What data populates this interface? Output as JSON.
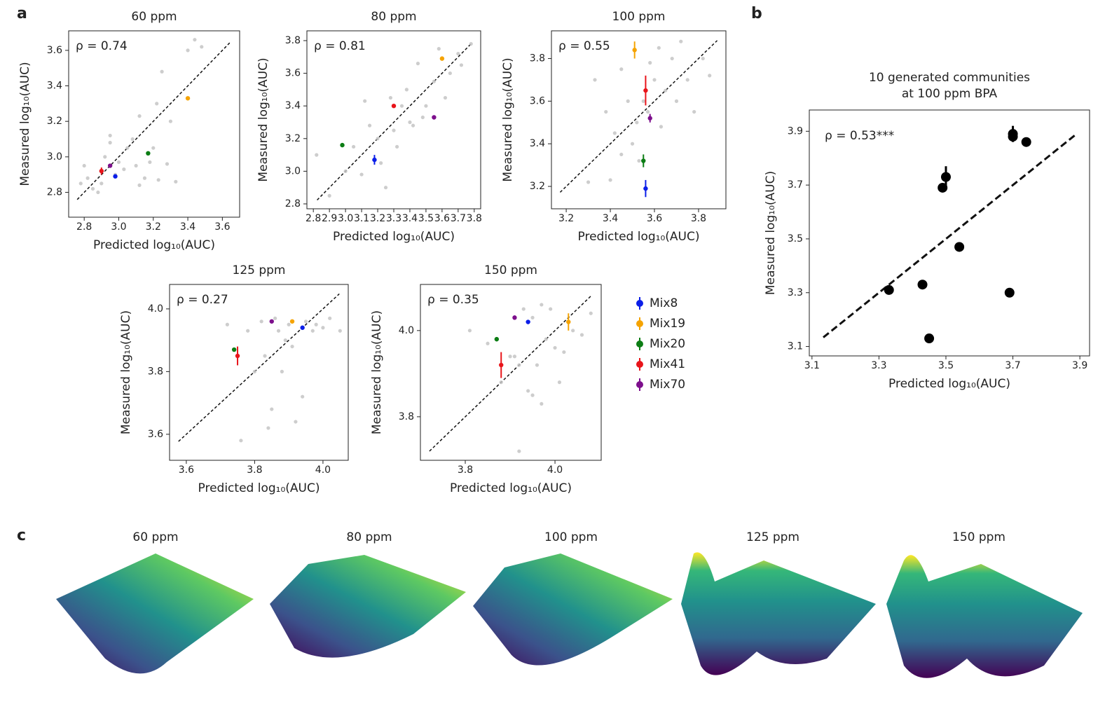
{
  "panel_labels": [
    "a",
    "b",
    "c"
  ],
  "legend": [
    {
      "name": "Mix8",
      "color": "#0b1ee8"
    },
    {
      "name": "Mix19",
      "color": "#f5a300"
    },
    {
      "name": "Mix20",
      "color": "#0c7d14"
    },
    {
      "name": "Mix41",
      "color": "#e8141a"
    },
    {
      "name": "Mix70",
      "color": "#7d0f8c"
    }
  ],
  "chart_data": [
    {
      "type": "scatter",
      "title": "60 ppm",
      "annotation": "ρ = 0.74",
      "x_label": "Predicted log₁₀(AUC)",
      "y_label": "Measured log₁₀(AUC)",
      "xlim": [
        2.71,
        3.7
      ],
      "ylim": [
        2.66,
        3.71
      ],
      "xticks": [
        2.8,
        {
          "value": 3,
          "label": "3.0"
        },
        3.2,
        3.4,
        3.6
      ],
      "yticks": [
        2.8,
        {
          "value": 3,
          "label": "3.0"
        },
        3.2,
        3.4,
        3.6
      ],
      "diagonal": true,
      "points": {
        "color": "#c4c4c4",
        "x": [
          2.78,
          2.82,
          2.85,
          2.88,
          2.9,
          2.92,
          2.95,
          2.98,
          3.0,
          3.03,
          3.05,
          3.08,
          3.1,
          3.12,
          3.15,
          3.18,
          3.2,
          3.23,
          3.25,
          3.28,
          3.3,
          3.33,
          3.4,
          3.44,
          3.48,
          2.8,
          2.95,
          3.12,
          3.22
        ],
        "values": [
          2.85,
          2.88,
          2.82,
          2.8,
          2.85,
          3.0,
          3.08,
          2.9,
          2.97,
          2.93,
          3.05,
          3.1,
          2.95,
          2.84,
          2.88,
          2.97,
          3.05,
          2.87,
          3.48,
          2.96,
          3.2,
          2.86,
          3.6,
          3.66,
          3.62,
          2.95,
          3.12,
          3.23,
          3.3
        ]
      },
      "mixes": {
        "x": [
          2.98,
          3.4,
          3.17,
          2.9,
          2.95
        ],
        "values": [
          2.89,
          3.33,
          3.02,
          2.92,
          2.95
        ],
        "errors": [
          0.01,
          0.01,
          0.01,
          0.02,
          0.01
        ]
      }
    },
    {
      "type": "scatter",
      "title": "80 ppm",
      "annotation": "ρ = 0.81",
      "x_label": "Predicted log₁₀(AUC)",
      "y_label": "Measured log₁₀(AUC)",
      "xlim": [
        2.76,
        3.84
      ],
      "ylim": [
        2.77,
        3.86
      ],
      "xticks": [
        2.8,
        2.9,
        {
          "value": 3,
          "label": "3.0"
        },
        3.1,
        3.2,
        3.3,
        3.4,
        3.5,
        3.6,
        3.7,
        3.8
      ],
      "yticks": [
        2.8,
        {
          "value": 3,
          "label": "3.0"
        },
        3.2,
        3.4,
        3.6,
        3.8
      ],
      "diagonal": true,
      "points": {
        "color": "#c4c4c4",
        "x": [
          2.82,
          2.9,
          3.0,
          3.05,
          3.1,
          3.15,
          3.2,
          3.22,
          3.25,
          3.28,
          3.3,
          3.35,
          3.38,
          3.4,
          3.42,
          3.45,
          3.5,
          3.55,
          3.58,
          3.62,
          3.65,
          3.7,
          3.72,
          3.78,
          3.12,
          3.32,
          3.48
        ],
        "values": [
          3.1,
          2.85,
          3.0,
          3.15,
          2.98,
          3.28,
          3.2,
          3.05,
          2.9,
          3.45,
          3.25,
          3.4,
          3.5,
          3.3,
          3.28,
          3.66,
          3.4,
          3.55,
          3.75,
          3.45,
          3.6,
          3.72,
          3.65,
          3.78,
          3.43,
          3.15,
          3.33
        ]
      },
      "mixes": {
        "x": [
          3.18,
          3.6,
          2.98,
          3.3,
          3.55
        ],
        "values": [
          3.07,
          3.69,
          3.16,
          3.4,
          3.33
        ],
        "errors": [
          0.03,
          0.01,
          0.01,
          0.01,
          0.01
        ]
      }
    },
    {
      "type": "scatter",
      "title": "100 ppm",
      "annotation": "ρ = 0.55",
      "x_label": "Predicted log₁₀(AUC)",
      "y_label": "Measured log₁₀(AUC)",
      "xlim": [
        3.133,
        3.924
      ],
      "ylim": [
        3.095,
        3.93
      ],
      "xticks": [
        3.2,
        3.4,
        3.6,
        3.8
      ],
      "yticks": [
        3.2,
        3.4,
        3.6,
        3.8
      ],
      "diagonal": true,
      "points": {
        "color": "#c4c4c4",
        "x": [
          3.33,
          3.38,
          3.4,
          3.42,
          3.45,
          3.48,
          3.5,
          3.52,
          3.55,
          3.57,
          3.58,
          3.6,
          3.62,
          3.65,
          3.68,
          3.7,
          3.75,
          3.78,
          3.82,
          3.85,
          3.3,
          3.45,
          3.53,
          3.63,
          3.72
        ],
        "values": [
          3.7,
          3.55,
          3.23,
          3.45,
          3.35,
          3.6,
          3.4,
          3.5,
          3.6,
          3.55,
          3.78,
          3.7,
          3.85,
          3.65,
          3.8,
          3.6,
          3.7,
          3.55,
          3.8,
          3.72,
          3.22,
          3.75,
          3.32,
          3.48,
          3.88
        ]
      },
      "mixes": {
        "x": [
          3.56,
          3.51,
          3.55,
          3.56,
          3.58
        ],
        "values": [
          3.19,
          3.84,
          3.32,
          3.65,
          3.52
        ],
        "errors": [
          0.04,
          0.04,
          0.03,
          0.07,
          0.02
        ]
      }
    },
    {
      "type": "scatter",
      "title": "125 ppm",
      "annotation": "ρ = 0.27",
      "x_label": "Predicted log₁₀(AUC)",
      "y_label": "Measured log₁₀(AUC)",
      "xlim": [
        3.551,
        4.074
      ],
      "ylim": [
        3.517,
        4.078
      ],
      "xticks": [
        3.6,
        3.8,
        {
          "value": 4,
          "label": "4.0"
        }
      ],
      "yticks": [
        3.6,
        3.8,
        {
          "value": 4,
          "label": "4.0"
        }
      ],
      "diagonal": true,
      "points": {
        "color": "#c4c4c4",
        "x": [
          3.72,
          3.76,
          3.78,
          3.8,
          3.82,
          3.84,
          3.85,
          3.87,
          3.88,
          3.9,
          3.91,
          3.92,
          3.94,
          3.95,
          3.97,
          3.98,
          4.0,
          4.02,
          4.05,
          3.86,
          3.89,
          3.83
        ],
        "values": [
          3.95,
          3.58,
          3.93,
          3.8,
          3.96,
          3.62,
          3.68,
          3.93,
          3.8,
          3.95,
          3.88,
          3.64,
          3.72,
          3.96,
          3.93,
          3.95,
          3.94,
          3.97,
          3.93,
          3.97,
          3.9,
          3.85
        ]
      },
      "mixes": {
        "x": [
          3.94,
          3.91,
          3.74,
          3.75,
          3.85
        ],
        "values": [
          3.94,
          3.96,
          3.87,
          3.85,
          3.96
        ],
        "errors": [
          0.005,
          0.005,
          0.005,
          0.03,
          0.005
        ]
      }
    },
    {
      "type": "scatter",
      "title": "150 ppm",
      "annotation": "ρ = 0.35",
      "x_label": "Predicted log₁₀(AUC)",
      "y_label": "Measured log₁₀(AUC)",
      "xlim": [
        3.7,
        4.103
      ],
      "ylim": [
        3.699,
        4.107
      ],
      "xticks": [
        3.8,
        {
          "value": 4,
          "label": "4.0"
        }
      ],
      "yticks": [
        3.8,
        {
          "value": 4,
          "label": "4.0"
        }
      ],
      "diagonal": true,
      "points": {
        "color": "#c4c4c4",
        "x": [
          3.81,
          3.85,
          3.88,
          3.9,
          3.92,
          3.93,
          3.94,
          3.95,
          3.96,
          3.97,
          3.98,
          3.99,
          4.0,
          4.02,
          4.04,
          4.06,
          4.08,
          3.92,
          3.95,
          4.01,
          3.91,
          3.97
        ],
        "values": [
          4.0,
          3.97,
          3.88,
          3.94,
          3.92,
          4.05,
          3.86,
          3.85,
          3.92,
          3.83,
          3.98,
          4.05,
          3.96,
          3.95,
          4.0,
          3.99,
          4.04,
          3.72,
          4.03,
          3.88,
          3.94,
          4.06
        ]
      },
      "mixes": {
        "x": [
          3.94,
          4.03,
          3.87,
          3.88,
          3.91
        ],
        "values": [
          4.02,
          4.02,
          3.98,
          3.92,
          4.03
        ],
        "errors": [
          0.005,
          0.02,
          0.005,
          0.03,
          0.005
        ]
      }
    },
    {
      "type": "scatter",
      "title": [
        "10 generated communities",
        "at 100 ppm BPA"
      ],
      "annotation": "ρ = 0.53***",
      "x_label": "Predicted log₁₀(AUC)",
      "y_label": "Measured log₁₀(AUC)",
      "xlim": [
        3.092,
        3.929
      ],
      "ylim": [
        3.065,
        3.979
      ],
      "xticks": [
        3.1,
        3.3,
        3.5,
        3.7,
        3.9
      ],
      "yticks": [
        3.1,
        3.3,
        3.5,
        3.7,
        3.9
      ],
      "diagonal": true,
      "points": {
        "color": "#000000",
        "x": [
          3.33,
          3.43,
          3.45,
          3.49,
          3.5,
          3.54,
          3.69,
          3.7,
          3.7,
          3.74
        ],
        "values": [
          3.31,
          3.33,
          3.13,
          3.69,
          3.73,
          3.47,
          3.3,
          3.88,
          3.89,
          3.86
        ],
        "errors": [
          null,
          null,
          null,
          null,
          0.04,
          null,
          null,
          null,
          0.03,
          null
        ]
      }
    }
  ],
  "surfaces": [
    "60 ppm",
    "80 ppm",
    "100 ppm",
    "125 ppm",
    "150 ppm"
  ]
}
